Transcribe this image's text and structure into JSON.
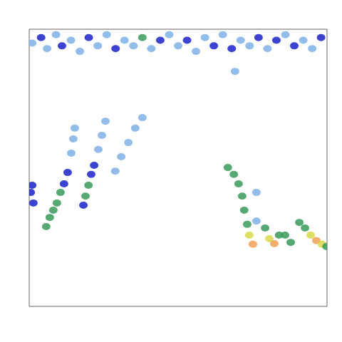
{
  "chart_data": {
    "type": "heatmap",
    "tick_labels": false,
    "xlim": [
      0,
      100
    ],
    "ylim": [
      0,
      100
    ],
    "value_range": [
      0,
      1
    ],
    "colors": [
      "#d6e6f7",
      "#7fb0e6",
      "#1a22c8",
      "#3a9a5a",
      "#d9d84a",
      "#f0a050"
    ],
    "cells": [
      [
        1,
        95,
        0.3
      ],
      [
        4,
        97,
        0.35
      ],
      [
        6,
        93,
        0.25
      ],
      [
        9,
        98,
        0.3
      ],
      [
        11,
        94,
        0.35
      ],
      [
        14,
        96,
        0.3
      ],
      [
        17,
        92,
        0.25
      ],
      [
        20,
        97,
        0.4
      ],
      [
        23,
        94,
        0.3
      ],
      [
        26,
        98,
        0.3
      ],
      [
        29,
        93,
        0.35
      ],
      [
        32,
        96,
        0.25
      ],
      [
        35,
        94,
        0.3
      ],
      [
        38,
        97,
        0.55
      ],
      [
        41,
        93,
        0.3
      ],
      [
        44,
        96,
        0.35
      ],
      [
        47,
        98,
        0.25
      ],
      [
        50,
        94,
        0.3
      ],
      [
        53,
        96,
        0.35
      ],
      [
        56,
        92,
        0.25
      ],
      [
        59,
        97,
        0.3
      ],
      [
        62,
        94,
        0.4
      ],
      [
        65,
        98,
        0.3
      ],
      [
        68,
        93,
        0.35
      ],
      [
        71,
        96,
        0.3
      ],
      [
        74,
        94,
        0.25
      ],
      [
        77,
        97,
        0.35
      ],
      [
        80,
        93,
        0.3
      ],
      [
        83,
        96,
        0.4
      ],
      [
        86,
        98,
        0.25
      ],
      [
        89,
        94,
        0.35
      ],
      [
        92,
        96,
        0.3
      ],
      [
        95,
        93,
        0.3
      ],
      [
        98,
        97,
        0.35
      ],
      [
        0.5,
        41.1,
        0.45
      ],
      [
        1,
        43.7,
        0.4
      ],
      [
        1.4,
        37.3,
        0.35
      ],
      [
        5.7,
        28.8,
        0.55
      ],
      [
        6.9,
        32.1,
        0.6
      ],
      [
        8.1,
        34.7,
        0.55
      ],
      [
        9.3,
        37.3,
        0.6
      ],
      [
        10.5,
        41.1,
        0.5
      ],
      [
        11.7,
        44.2,
        0.45
      ],
      [
        12.9,
        48.3,
        0.4
      ],
      [
        14.1,
        55.3,
        0.25
      ],
      [
        14.8,
        60.4,
        0.2
      ],
      [
        15.3,
        64.3,
        0.2
      ],
      [
        18.2,
        36.5,
        0.45
      ],
      [
        18.9,
        39.8,
        0.55
      ],
      [
        19.9,
        43.7,
        0.5
      ],
      [
        20.8,
        47.6,
        0.45
      ],
      [
        21.8,
        50.9,
        0.4
      ],
      [
        23.2,
        56.6,
        0.25
      ],
      [
        24.4,
        61.7,
        0.2
      ],
      [
        25.6,
        66.8,
        0.2
      ],
      [
        28.9,
        48.8,
        0.2
      ],
      [
        30.9,
        54,
        0.2
      ],
      [
        33.3,
        59.1,
        0.2
      ],
      [
        35.6,
        64.3,
        0.2
      ],
      [
        38,
        68.1,
        0.2
      ],
      [
        66.7,
        50.1,
        0.55
      ],
      [
        68.7,
        47.6,
        0.6
      ],
      [
        70.3,
        44.2,
        0.55
      ],
      [
        71.5,
        39.8,
        0.5
      ],
      [
        72.2,
        34.7,
        0.55
      ],
      [
        73.2,
        29.6,
        0.6
      ],
      [
        73.9,
        25.7,
        0.7
      ],
      [
        75.1,
        22.4,
        0.9
      ],
      [
        76.3,
        41.1,
        0.25
      ],
      [
        76.3,
        30.8,
        0.3
      ],
      [
        79.2,
        28.3,
        0.6
      ],
      [
        80.6,
        24.4,
        0.75
      ],
      [
        82.3,
        22.6,
        0.9
      ],
      [
        83.9,
        25.7,
        0.55
      ],
      [
        85.9,
        25.7,
        0.5
      ],
      [
        87.8,
        23.1,
        0.6
      ],
      [
        90.7,
        30.3,
        0.55
      ],
      [
        92.6,
        28.3,
        0.6
      ],
      [
        94.5,
        25.7,
        0.7
      ],
      [
        96.4,
        23.7,
        0.85
      ],
      [
        98.3,
        22.4,
        0.75
      ],
      [
        99.8,
        21.6,
        0.6
      ],
      [
        69.1,
        84.8,
        0.2
      ]
    ]
  }
}
